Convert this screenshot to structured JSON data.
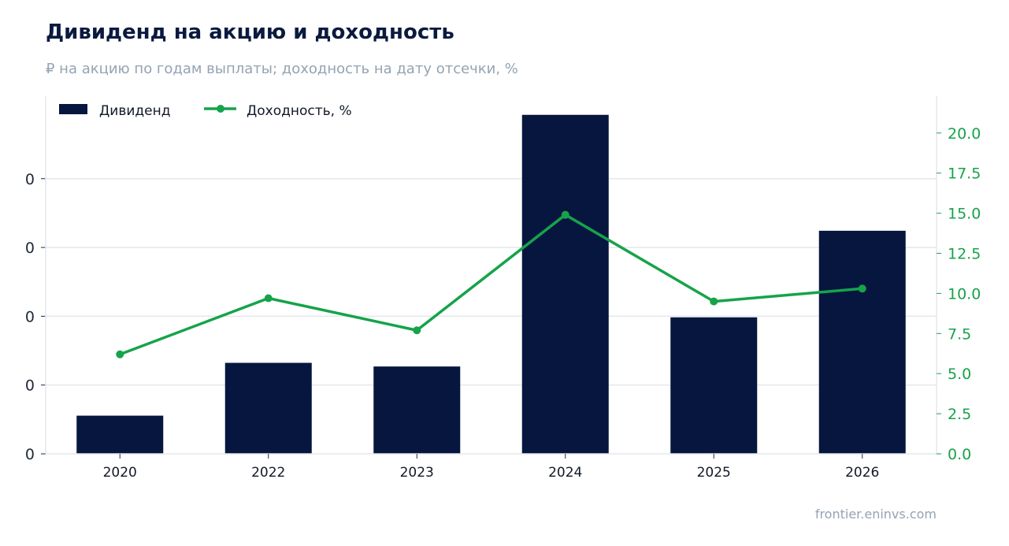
{
  "header": {
    "title": "Дивиденд на акцию и доходность",
    "subtitle": "₽ на акцию по годам выплаты; доходность на дату отсечки, %"
  },
  "footer": {
    "source": "frontier.eninvs.com"
  },
  "colors": {
    "bars": "#06163f",
    "line": "#16a34a",
    "grid": "#e5e7eb",
    "axis_left": "#1f2937",
    "axis_right": "#16a34a"
  },
  "chart_data": {
    "type": "bar",
    "categories": [
      "2020",
      "2022",
      "2023",
      "2024",
      "2025",
      "2026"
    ],
    "series": [
      {
        "name": "Дивиденд",
        "type": "bar",
        "axis": "left",
        "values": [
          0.52,
          1.24,
          1.19,
          4.62,
          1.86,
          3.04
        ]
      },
      {
        "name": "Доходность, %",
        "type": "line",
        "axis": "right",
        "values": [
          6.2,
          9.7,
          7.7,
          14.9,
          9.5,
          10.3
        ]
      }
    ],
    "y_left": {
      "ticks": [
        "0",
        "0",
        "0",
        "0",
        "0"
      ],
      "range": [
        0,
        4.875
      ]
    },
    "y_right": {
      "ticks": [
        "0.0",
        "2.5",
        "5.0",
        "7.5",
        "10.0",
        "12.5",
        "15.0",
        "17.5",
        "20.0"
      ],
      "range": [
        0,
        22.3
      ]
    },
    "legend": "top-left",
    "grid": true
  }
}
